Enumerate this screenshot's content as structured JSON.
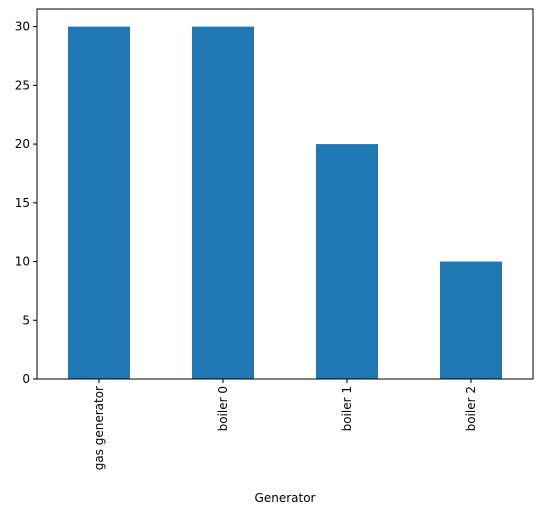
{
  "chart_data": {
    "type": "bar",
    "categories": [
      "gas generator",
      "boiler 0",
      "boiler 1",
      "boiler 2"
    ],
    "values": [
      30,
      30,
      20,
      10
    ],
    "title": "",
    "xlabel": "Generator",
    "ylabel": "",
    "ylim": [
      0,
      31.5
    ],
    "yticks": [
      0,
      5,
      10,
      15,
      20,
      25,
      30
    ],
    "bar_color": "#1f77b4",
    "grid": false,
    "legend": "none",
    "xtick_rotation": "vertical"
  }
}
